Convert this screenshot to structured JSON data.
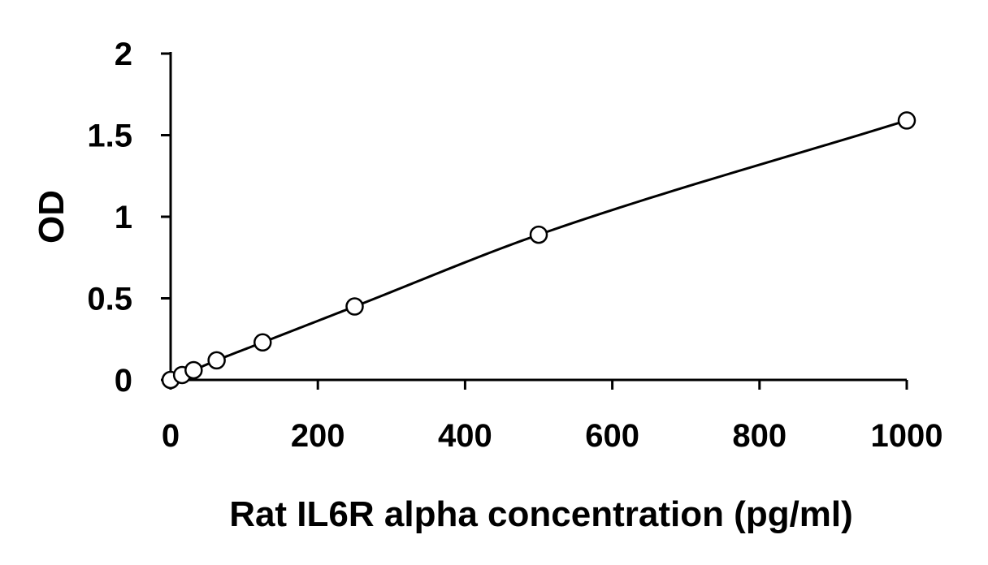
{
  "chart_data": {
    "type": "scatter",
    "title": "",
    "xlabel": "Rat IL6R alpha concentration (pg/ml)",
    "ylabel": "OD",
    "xlim": [
      0,
      1000
    ],
    "ylim": [
      0,
      2
    ],
    "xticks": [
      0,
      200,
      400,
      600,
      800,
      1000
    ],
    "yticks": [
      0,
      0.5,
      1,
      1.5,
      2
    ],
    "xtick_labels": [
      "0",
      "200",
      "400",
      "600",
      "800",
      "1000"
    ],
    "ytick_labels": [
      "0",
      "0.5",
      "1",
      "1.5",
      "2"
    ],
    "grid": false,
    "legend": "none",
    "marker": "open-circle",
    "trendline": "smooth curve through standards",
    "colors": {
      "line": "#000000",
      "marker_fill": "#ffffff",
      "marker_edge": "#000000"
    },
    "series": [
      {
        "x": [
          0,
          15.6,
          31.25,
          62.5,
          125,
          250,
          500,
          1000
        ],
        "y": [
          0.0,
          0.03,
          0.06,
          0.12,
          0.23,
          0.45,
          0.89,
          1.59
        ]
      }
    ]
  }
}
